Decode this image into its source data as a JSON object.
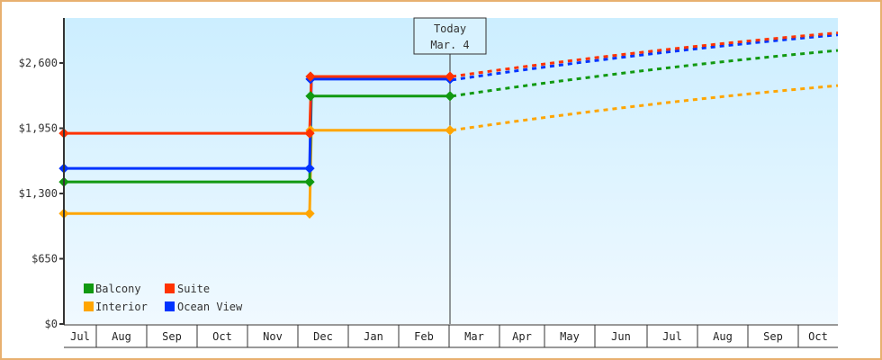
{
  "chart_data": {
    "type": "line",
    "title": "",
    "xlabel": "",
    "ylabel": "",
    "ylim": [
      0,
      3050
    ],
    "y_ticks": [
      "$0",
      "$650",
      "$1,300",
      "$1,950",
      "$2,600"
    ],
    "y_tick_values": [
      0,
      650,
      1300,
      1950,
      2600
    ],
    "x_tick_labels": [
      "Jul",
      "Aug",
      "Sep",
      "Oct",
      "Nov",
      "Dec",
      "Jan",
      "Feb",
      "Mar",
      "Apr",
      "May",
      "Jun",
      "Jul",
      "Aug",
      "Sep",
      "Oct"
    ],
    "today_marker": {
      "line1": "Today",
      "line2": "Mar. 4"
    },
    "legend_position": "bottom-left inside plot",
    "grid": false,
    "series": [
      {
        "name": "Balcony",
        "color": "#119911",
        "historical": [
          {
            "x": "Jul",
            "y": 1415
          },
          {
            "x": "Dec (early)",
            "y": 1415
          },
          {
            "x": "Dec",
            "y": 2270
          },
          {
            "x": "Mar. 4",
            "y": 2270
          }
        ],
        "projected_end": {
          "x": "Oct",
          "y": 2725
        }
      },
      {
        "name": "Suite",
        "color": "#ff3300",
        "historical": [
          {
            "x": "Jul",
            "y": 1900
          },
          {
            "x": "Dec (early)",
            "y": 1900
          },
          {
            "x": "Dec",
            "y": 2465
          },
          {
            "x": "Mar. 4",
            "y": 2465
          }
        ],
        "projected_end": {
          "x": "Oct",
          "y": 2900
        }
      },
      {
        "name": "Interior",
        "color": "#ffa500",
        "historical": [
          {
            "x": "Jul",
            "y": 1100
          },
          {
            "x": "Dec (early)",
            "y": 1100
          },
          {
            "x": "Dec",
            "y": 1930
          },
          {
            "x": "Mar. 4",
            "y": 1930
          }
        ],
        "projected_end": {
          "x": "Oct",
          "y": 2375
        }
      },
      {
        "name": "Ocean View",
        "color": "#0033ff",
        "historical": [
          {
            "x": "Jul",
            "y": 1550
          },
          {
            "x": "Dec (early)",
            "y": 1550
          },
          {
            "x": "Dec",
            "y": 2440
          },
          {
            "x": "Mar. 4",
            "y": 2440
          }
        ],
        "projected_end": {
          "x": "Oct",
          "y": 2890
        }
      }
    ]
  }
}
